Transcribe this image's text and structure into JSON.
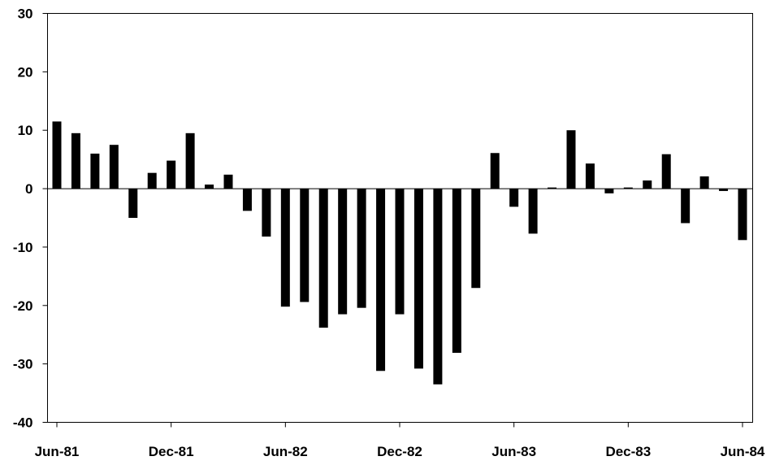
{
  "chart_data": {
    "type": "bar",
    "title": "",
    "xlabel": "",
    "ylabel": "",
    "ylim": [
      -40,
      30
    ],
    "yticks": [
      "30",
      "20",
      "10",
      "0",
      "-10",
      "-20",
      "-30",
      "-40"
    ],
    "xtick_labels": [
      "Jun-81",
      "Dec-81",
      "Jun-82",
      "Dec-82",
      "Jun-83",
      "Dec-83",
      "Jun-84"
    ],
    "grid": false,
    "legend": "none",
    "bar_color": "#000000",
    "categories": [
      "Jun-81",
      "Jul-81",
      "Aug-81",
      "Sep-81",
      "Oct-81",
      "Nov-81",
      "Dec-81",
      "Jan-82",
      "Feb-82",
      "Mar-82",
      "Apr-82",
      "May-82",
      "Jun-82",
      "Jul-82",
      "Aug-82",
      "Sep-82",
      "Oct-82",
      "Nov-82",
      "Dec-82",
      "Jan-83",
      "Feb-83",
      "Mar-83",
      "Apr-83",
      "May-83",
      "Jun-83",
      "Jul-83",
      "Aug-83",
      "Sep-83",
      "Oct-83",
      "Nov-83",
      "Dec-83",
      "Jan-84",
      "Feb-84",
      "Mar-84",
      "Apr-84",
      "May-84",
      "Jun-84"
    ],
    "values": [
      11.5,
      9.5,
      6.0,
      7.5,
      -5.0,
      2.7,
      4.8,
      9.5,
      0.7,
      2.4,
      -3.8,
      -8.2,
      -20.2,
      -19.4,
      -23.8,
      -21.5,
      -20.4,
      -31.2,
      -21.5,
      -30.8,
      -33.5,
      -28.1,
      -17.0,
      6.1,
      -3.1,
      -7.7,
      0.2,
      10.0,
      4.3,
      -0.8,
      0.2,
      1.4,
      5.9,
      -5.9,
      2.1,
      -0.4,
      -8.8
    ]
  }
}
